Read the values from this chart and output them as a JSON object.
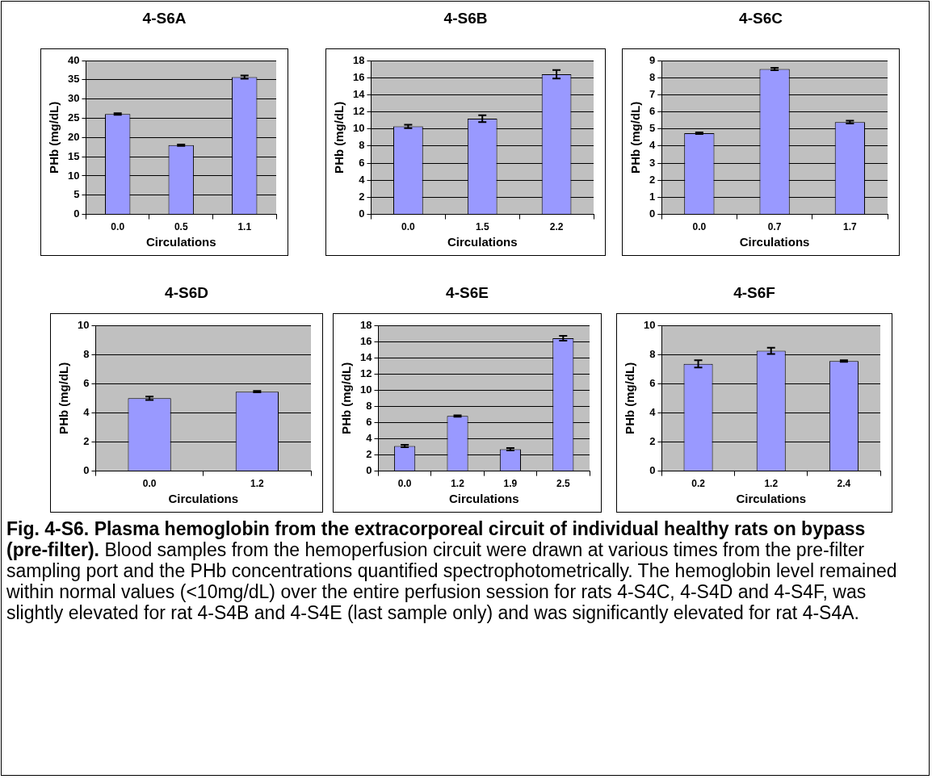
{
  "chart_data": [
    {
      "type": "bar",
      "title": "4-S6A",
      "xlabel": "Circulations",
      "ylabel": "PHb (mg/dL)",
      "categories": [
        "0.0",
        "0.5",
        "1.1"
      ],
      "values": [
        26.1,
        18.0,
        35.7
      ],
      "errors": [
        0.2,
        0.2,
        0.4
      ],
      "color": "#9999ff",
      "ylim": [
        0,
        40
      ],
      "yticks": [
        0,
        5,
        10,
        15,
        20,
        25,
        30,
        35,
        40
      ],
      "grid": "y"
    },
    {
      "type": "bar",
      "title": "4-S6B",
      "xlabel": "Circulations",
      "ylabel": "PHb (mg/dL)",
      "categories": [
        "0.0",
        "1.5",
        "2.2"
      ],
      "values": [
        10.3,
        11.2,
        16.4
      ],
      "errors": [
        0.2,
        0.4,
        0.5
      ],
      "color": "#9999ff",
      "ylim": [
        0,
        18
      ],
      "yticks": [
        0,
        2,
        4,
        6,
        8,
        10,
        12,
        14,
        16,
        18
      ],
      "grid": "y"
    },
    {
      "type": "bar",
      "title": "4-S6C",
      "xlabel": "Circulations",
      "ylabel": "PHb (mg/dL)",
      "categories": [
        "0.0",
        "0.7",
        "1.7"
      ],
      "values": [
        4.75,
        8.5,
        5.4
      ],
      "errors": [
        0.05,
        0.07,
        0.08
      ],
      "color": "#9999ff",
      "ylim": [
        0,
        9
      ],
      "yticks": [
        0,
        1,
        2,
        3,
        4,
        5,
        6,
        7,
        8,
        9
      ],
      "grid": "y"
    },
    {
      "type": "bar",
      "title": "4-S6D",
      "xlabel": "Circulations",
      "ylabel": "PHb (mg/dL)",
      "categories": [
        "0.0",
        "1.2"
      ],
      "values": [
        5.0,
        5.45
      ],
      "errors": [
        0.12,
        0.05
      ],
      "color": "#9999ff",
      "ylim": [
        0,
        10
      ],
      "yticks": [
        0,
        2,
        4,
        6,
        8,
        10
      ],
      "grid": "y"
    },
    {
      "type": "bar",
      "title": "4-S6E",
      "xlabel": "Circulations",
      "ylabel": "PHb (mg/dL)",
      "categories": [
        "0.0",
        "1.2",
        "1.9",
        "2.5"
      ],
      "values": [
        3.1,
        6.8,
        2.7,
        16.4
      ],
      "errors": [
        0.15,
        0.08,
        0.15,
        0.3
      ],
      "color": "#9999ff",
      "ylim": [
        0,
        18
      ],
      "yticks": [
        0,
        2,
        4,
        6,
        8,
        10,
        12,
        14,
        16,
        18
      ],
      "grid": "y"
    },
    {
      "type": "bar",
      "title": "4-S6F",
      "xlabel": "Circulations",
      "ylabel": "PHb (mg/dL)",
      "categories": [
        "0.2",
        "1.2",
        "2.4"
      ],
      "values": [
        7.35,
        8.25,
        7.55
      ],
      "errors": [
        0.25,
        0.22,
        0.06
      ],
      "color": "#9999ff",
      "ylim": [
        0,
        10
      ],
      "yticks": [
        0,
        2,
        4,
        6,
        8,
        10
      ],
      "grid": "y",
      "annotations": [
        "Fig. 4-S6. Plasma hemoglobin from the extracorporeal circuit of individual healthy rats on bypass (pre-filter).",
        "Blood samples from the hemoperfusion circuit were drawn at various times from the pre-filter sampling port and the PHb concentrations quantified spectrophotometrically. The hemoglobin level remained within normal values (<10mg/dL) over the entire perfusion session for rats 4-S4C, 4-S4D and 4-S4F, was slightly elevated for rat 4-S4B and 4-S4E (last sample only) and was significantly elevated for rat 4-S4A."
      ]
    }
  ]
}
